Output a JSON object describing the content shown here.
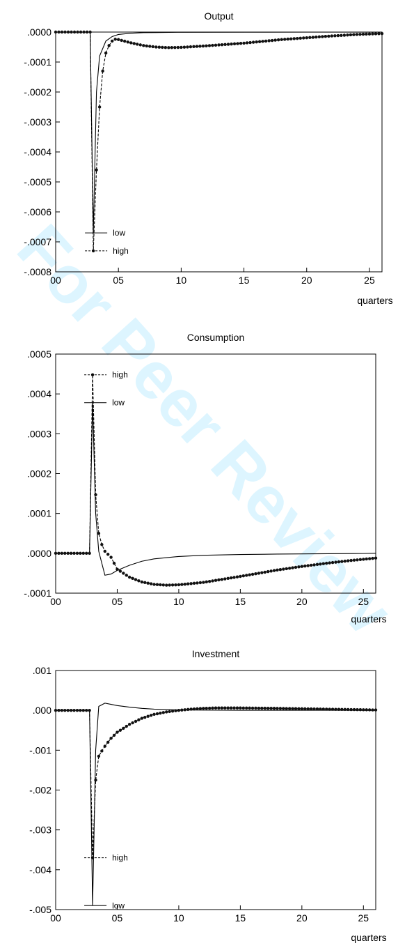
{
  "watermark": {
    "text": "For Peer Review"
  },
  "chart_data": [
    {
      "type": "line",
      "title": "Output",
      "xlabel": "quarters",
      "xlim": [
        0,
        26
      ],
      "ylim": [
        -0.0008,
        0.0
      ],
      "x_ticks": [
        0,
        5,
        10,
        15,
        20,
        25
      ],
      "x_tick_labels": [
        "00",
        "05",
        "10",
        "15",
        "20",
        "25"
      ],
      "y_ticks": [
        0.0,
        -0.0001,
        -0.0002,
        -0.0003,
        -0.0004,
        -0.0005,
        -0.0006,
        -0.0007,
        -0.0008
      ],
      "y_tick_labels": [
        ".0000",
        "-.0001",
        "-.0002",
        "-.0003",
        "-.0004",
        "-.0005",
        "-.0006",
        "-.0007",
        "-.0008"
      ],
      "grid": false,
      "legend": "none",
      "annotations": [
        {
          "text": "low",
          "x": 3,
          "y": -0.00067,
          "series": "low"
        },
        {
          "text": "high",
          "x": 3,
          "y": -0.00073,
          "series": "high"
        }
      ],
      "series": [
        {
          "name": "low",
          "style": "solid",
          "x": [
            0,
            2.75,
            3,
            3.25,
            3.5,
            4,
            4.5,
            5,
            6,
            7,
            8,
            9,
            10,
            15,
            20,
            25,
            26
          ],
          "y": [
            0,
            0,
            -0.00067,
            -0.0002,
            -8e-05,
            -3e-05,
            -1.5e-05,
            -8e-06,
            -4e-06,
            -2e-06,
            -1.5e-06,
            -1e-06,
            -8e-07,
            -4e-07,
            -2e-07,
            -1e-07,
            0
          ]
        },
        {
          "name": "high",
          "style": "dashed-dots",
          "x": [
            0,
            2.75,
            3,
            3.25,
            3.5,
            3.75,
            4,
            4.25,
            4.5,
            4.75,
            5,
            6,
            7,
            8,
            9,
            10,
            12,
            15,
            18,
            20,
            22,
            24,
            26
          ],
          "y": [
            0,
            0,
            -0.00073,
            -0.00046,
            -0.00025,
            -0.00013,
            -7e-05,
            -4.5e-05,
            -3e-05,
            -2.4e-05,
            -2.5e-05,
            -3.6e-05,
            -4.5e-05,
            -5e-05,
            -5.2e-05,
            -5.1e-05,
            -4.6e-05,
            -3.7e-05,
            -2.5e-05,
            -1.9e-05,
            -1.3e-05,
            -8e-06,
            -5e-06
          ]
        }
      ]
    },
    {
      "type": "line",
      "title": "Consumption",
      "xlabel": "quarters",
      "xlim": [
        0,
        26
      ],
      "ylim": [
        -0.0001,
        0.0005
      ],
      "x_ticks": [
        0,
        5,
        10,
        15,
        20,
        25
      ],
      "x_tick_labels": [
        "00",
        "05",
        "10",
        "15",
        "20",
        "25"
      ],
      "y_ticks": [
        0.0005,
        0.0004,
        0.0003,
        0.0002,
        0.0001,
        0.0,
        -0.0001
      ],
      "y_tick_labels": [
        ".0005",
        ".0004",
        ".0003",
        ".0002",
        ".0001",
        ".0000",
        "-.0001"
      ],
      "grid": false,
      "legend": "none",
      "annotations": [
        {
          "text": "high",
          "x": 3,
          "y": 0.000448,
          "series": "high"
        },
        {
          "text": "low",
          "x": 3,
          "y": 0.000378,
          "series": "low"
        }
      ],
      "series": [
        {
          "name": "low",
          "style": "solid",
          "x": [
            0,
            2.75,
            3,
            3.25,
            3.5,
            4,
            4.5,
            5,
            6,
            7,
            8,
            10,
            12,
            15,
            18,
            20,
            25,
            26
          ],
          "y": [
            0,
            0,
            0.000378,
            0.0001,
            5e-06,
            -5.5e-05,
            -5.2e-05,
            -4.3e-05,
            -3e-05,
            -2e-05,
            -1.4e-05,
            -8e-06,
            -5e-06,
            -3e-06,
            -2e-06,
            -1.5e-06,
            -5e-07,
            0
          ]
        },
        {
          "name": "high",
          "style": "dashed-dots",
          "x": [
            0,
            2.75,
            3,
            3.25,
            3.5,
            3.75,
            4,
            4.5,
            5,
            6,
            7,
            8,
            9,
            10,
            12,
            15,
            18,
            20,
            22,
            24,
            26
          ],
          "y": [
            0,
            0,
            0.000448,
            0.000147,
            5e-05,
            2.2e-05,
            5e-06,
            -1e-05,
            -4e-05,
            -6e-05,
            -7.2e-05,
            -7.8e-05,
            -8e-05,
            -7.9e-05,
            -7.3e-05,
            -5.8e-05,
            -4.2e-05,
            -3.3e-05,
            -2.5e-05,
            -1.8e-05,
            -1.2e-05
          ]
        }
      ]
    },
    {
      "type": "line",
      "title": "Investment",
      "xlabel": "quarters",
      "xlim": [
        0,
        26
      ],
      "ylim": [
        -0.005,
        0.001
      ],
      "x_ticks": [
        0,
        5,
        10,
        15,
        20,
        25
      ],
      "x_tick_labels": [
        "00",
        "05",
        "10",
        "15",
        "20",
        "25"
      ],
      "y_ticks": [
        0.001,
        0.0,
        -0.001,
        -0.002,
        -0.003,
        -0.004,
        -0.005
      ],
      "y_tick_labels": [
        ".001",
        ".000",
        "-.001",
        "-.002",
        "-.003",
        "-.004",
        "-.005"
      ],
      "grid": false,
      "legend": "none",
      "annotations": [
        {
          "text": "high",
          "x": 3,
          "y": -0.0037,
          "series": "high"
        },
        {
          "text": "low",
          "x": 3,
          "y": -0.0049,
          "series": "low"
        }
      ],
      "series": [
        {
          "name": "low",
          "style": "solid",
          "x": [
            0,
            2.75,
            3,
            3.25,
            3.5,
            4,
            4.5,
            5,
            6,
            7,
            8,
            10,
            12,
            15,
            20,
            25,
            26
          ],
          "y": [
            0,
            0,
            -0.0049,
            -0.001,
            0.0001,
            0.00018,
            0.00015,
            0.00012,
            8e-05,
            5e-05,
            3e-05,
            1e-05,
            5e-06,
            2e-06,
            1e-06,
            5e-07,
            0
          ]
        },
        {
          "name": "high",
          "style": "dashed-dots",
          "x": [
            0,
            2.75,
            3,
            3.25,
            3.5,
            3.75,
            4,
            4.5,
            5,
            6,
            7,
            8,
            9,
            10,
            11,
            12,
            13,
            15,
            18,
            20,
            22,
            24,
            26
          ],
          "y": [
            0,
            0,
            -0.0037,
            -0.00175,
            -0.00115,
            -0.00102,
            -0.0009,
            -0.0007,
            -0.00055,
            -0.00035,
            -0.0002,
            -0.0001,
            -4e-05,
            0.0,
            3e-05,
            5e-05,
            6e-05,
            6e-05,
            5e-05,
            4e-05,
            3e-05,
            2e-05,
            1e-05
          ]
        }
      ]
    }
  ]
}
